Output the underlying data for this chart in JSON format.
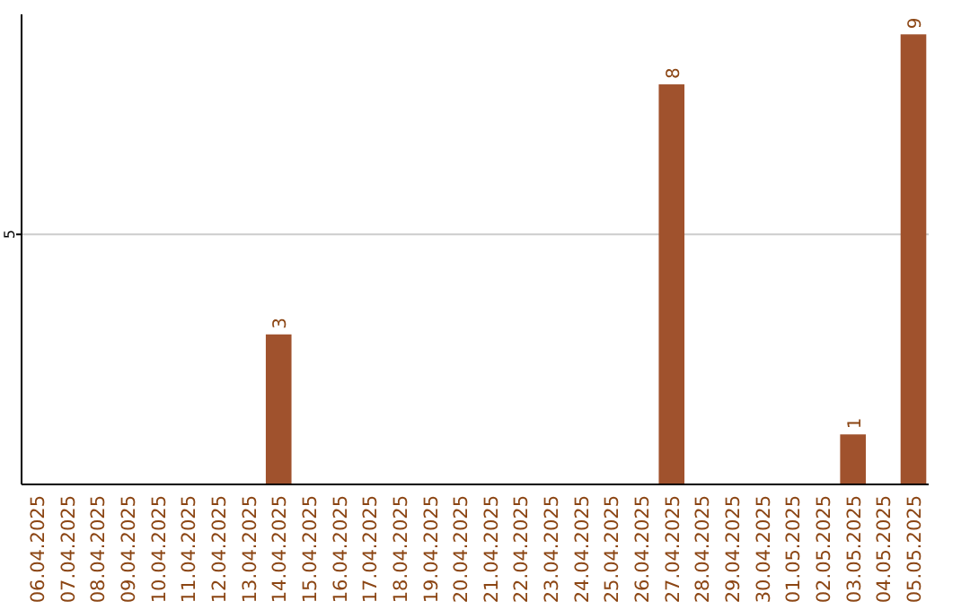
{
  "chart_data": {
    "type": "bar",
    "categories": [
      "06.04.2025",
      "07.04.2025",
      "08.04.2025",
      "09.04.2025",
      "10.04.2025",
      "11.04.2025",
      "12.04.2025",
      "13.04.2025",
      "14.04.2025",
      "15.04.2025",
      "16.04.2025",
      "17.04.2025",
      "18.04.2025",
      "19.04.2025",
      "20.04.2025",
      "21.04.2025",
      "22.04.2025",
      "23.04.2025",
      "24.04.2025",
      "25.04.2025",
      "26.04.2025",
      "27.04.2025",
      "28.04.2025",
      "29.04.2025",
      "30.04.2025",
      "01.05.2025",
      "02.05.2025",
      "03.05.2025",
      "04.05.2025",
      "05.05.2025"
    ],
    "values": [
      0,
      0,
      0,
      0,
      0,
      0,
      0,
      0,
      3,
      0,
      0,
      0,
      0,
      0,
      0,
      0,
      0,
      0,
      0,
      0,
      0,
      8,
      0,
      0,
      0,
      0,
      0,
      1,
      0,
      9
    ],
    "value_labels": [
      null,
      null,
      null,
      null,
      null,
      null,
      null,
      null,
      "3",
      null,
      null,
      null,
      null,
      null,
      null,
      null,
      null,
      null,
      null,
      null,
      null,
      "8",
      null,
      null,
      null,
      null,
      null,
      "1",
      null,
      "9"
    ],
    "color": "#a0522d",
    "ylim": [
      0,
      9.4
    ],
    "yticks": [
      5
    ],
    "grid": "y"
  }
}
